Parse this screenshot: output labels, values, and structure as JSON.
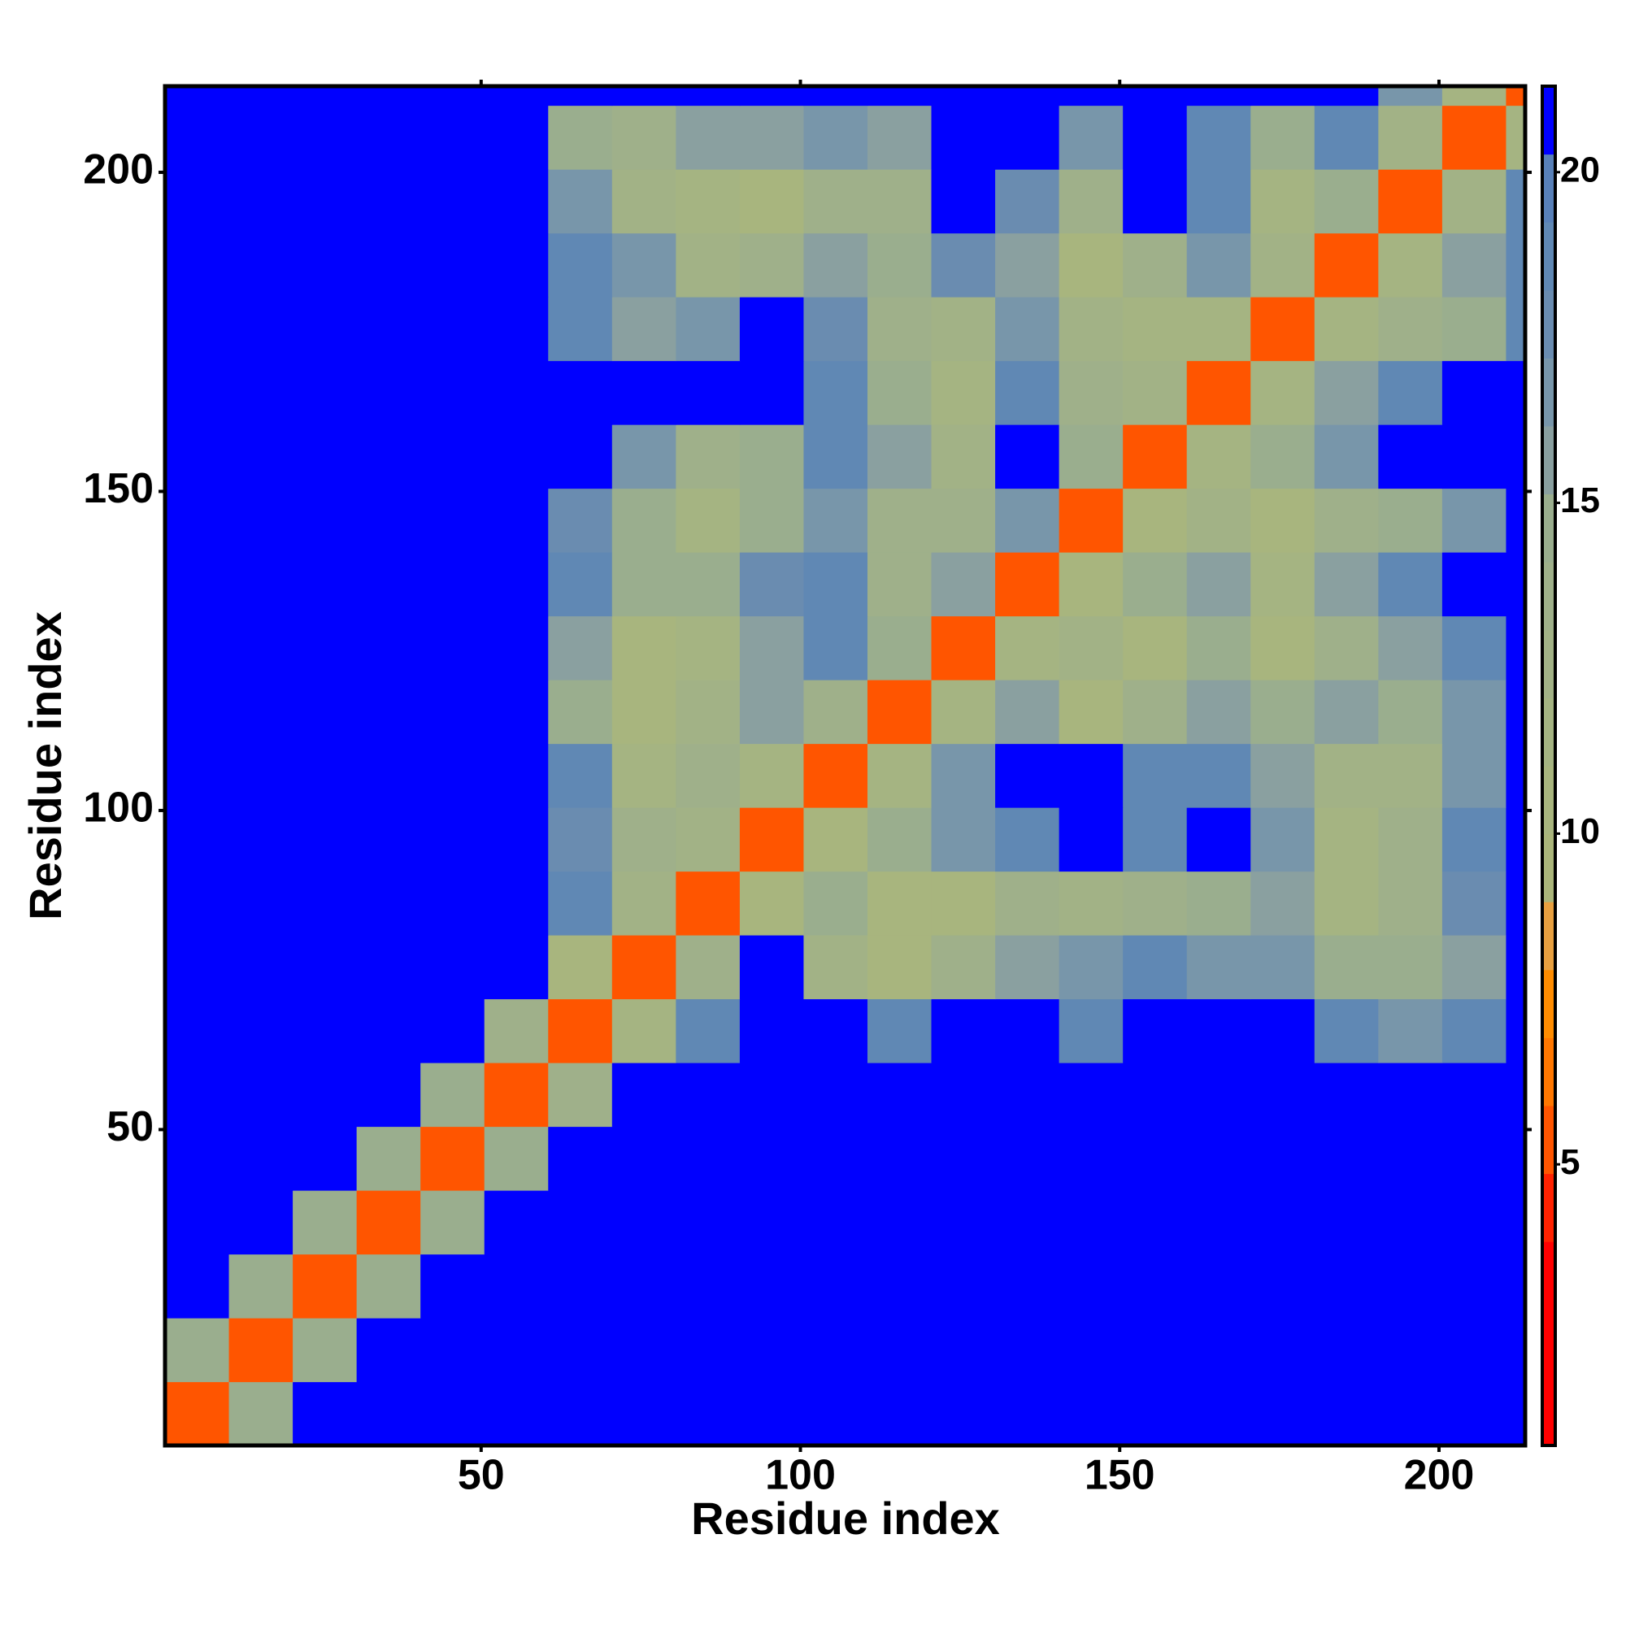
{
  "chart_data": {
    "type": "heatmap",
    "xlabel": "Residue index",
    "ylabel": "Residue index",
    "xlim": [
      0.5,
      213.5
    ],
    "ylim": [
      0.5,
      213.5
    ],
    "xticks": [
      50,
      100,
      150,
      200
    ],
    "yticks": [
      50,
      100,
      150,
      200
    ],
    "xbins": [
      0.5,
      10.5,
      20.5,
      30.5,
      40.5,
      50.5,
      60.5,
      70.5,
      80.5,
      90.5,
      100.5,
      110.5,
      120.5,
      130.5,
      140.5,
      150.5,
      160.5,
      170.5,
      180.5,
      190.5,
      200.5,
      210.5,
      213.5
    ],
    "ybins": [
      0.5,
      10.5,
      20.5,
      30.5,
      40.5,
      50.5,
      60.5,
      70.5,
      80.5,
      90.5,
      100.5,
      110.5,
      120.5,
      130.5,
      140.5,
      150.5,
      160.5,
      170.5,
      180.5,
      190.5,
      200.5,
      210.5,
      213.5
    ],
    "z": [
      [
        5,
        15,
        21,
        21,
        21,
        21,
        21,
        21,
        21,
        21,
        21,
        21,
        21,
        21,
        21,
        21,
        21,
        21,
        21,
        21,
        21,
        21
      ],
      [
        15,
        5,
        15,
        21,
        21,
        21,
        21,
        21,
        21,
        21,
        21,
        21,
        21,
        21,
        21,
        21,
        21,
        21,
        21,
        21,
        21,
        21
      ],
      [
        21,
        15,
        5,
        15,
        21,
        21,
        21,
        21,
        21,
        21,
        21,
        21,
        21,
        21,
        21,
        21,
        21,
        21,
        21,
        21,
        21,
        21
      ],
      [
        21,
        21,
        15,
        5,
        15,
        21,
        21,
        21,
        21,
        21,
        21,
        21,
        21,
        21,
        21,
        21,
        21,
        21,
        21,
        21,
        21,
        21
      ],
      [
        21,
        21,
        21,
        15,
        5,
        15,
        21,
        21,
        21,
        21,
        21,
        21,
        21,
        21,
        21,
        21,
        21,
        21,
        21,
        21,
        21,
        21
      ],
      [
        21,
        21,
        21,
        21,
        15,
        5,
        14,
        21,
        21,
        21,
        21,
        21,
        21,
        21,
        21,
        21,
        21,
        21,
        21,
        21,
        21,
        21
      ],
      [
        21,
        21,
        21,
        21,
        21,
        14,
        5,
        12,
        19,
        21,
        21,
        19,
        21,
        21,
        19,
        21,
        21,
        21,
        19,
        17,
        19,
        21
      ],
      [
        21,
        21,
        21,
        21,
        21,
        21,
        11,
        5,
        14,
        21,
        13,
        11,
        14,
        16,
        17,
        19,
        17,
        17,
        15,
        15,
        16,
        21
      ],
      [
        21,
        21,
        21,
        21,
        21,
        21,
        19,
        13,
        5,
        11,
        15,
        11,
        11,
        14,
        13,
        14,
        15,
        16,
        12,
        14,
        18,
        21
      ],
      [
        21,
        21,
        21,
        21,
        21,
        21,
        18,
        14,
        13,
        5,
        11,
        15,
        17,
        19,
        21,
        19,
        21,
        17,
        12,
        14,
        19,
        21
      ],
      [
        21,
        21,
        21,
        21,
        21,
        21,
        19,
        12,
        14,
        12,
        5,
        12,
        17,
        21,
        21,
        19,
        19,
        16,
        13,
        13,
        17,
        21
      ],
      [
        21,
        21,
        21,
        21,
        21,
        21,
        15,
        11,
        13,
        16,
        14,
        5,
        12,
        16,
        11,
        14,
        16,
        15,
        16,
        15,
        17,
        21
      ],
      [
        21,
        21,
        21,
        21,
        21,
        21,
        16,
        11,
        12,
        16,
        19,
        15,
        5,
        12,
        13,
        11,
        15,
        11,
        14,
        16,
        19,
        21
      ],
      [
        21,
        21,
        21,
        21,
        21,
        21,
        19,
        15,
        15,
        18,
        19,
        14,
        16,
        5,
        11,
        15,
        16,
        12,
        16,
        19,
        21,
        21
      ],
      [
        21,
        21,
        21,
        21,
        21,
        21,
        18,
        15,
        12,
        15,
        17,
        14,
        14,
        17,
        5,
        11,
        13,
        11,
        14,
        15,
        17,
        21
      ],
      [
        21,
        21,
        21,
        21,
        21,
        21,
        21,
        17,
        14,
        15,
        19,
        16,
        13,
        21,
        15,
        5,
        12,
        15,
        17,
        21,
        21,
        21
      ],
      [
        21,
        21,
        21,
        21,
        21,
        21,
        21,
        21,
        21,
        21,
        19,
        15,
        12,
        19,
        14,
        13,
        5,
        12,
        16,
        19,
        21,
        21
      ],
      [
        21,
        21,
        21,
        21,
        21,
        21,
        19,
        16,
        17,
        21,
        18,
        14,
        13,
        17,
        13,
        12,
        12,
        5,
        12,
        14,
        15,
        19
      ],
      [
        21,
        21,
        21,
        21,
        21,
        21,
        19,
        17,
        13,
        14,
        16,
        15,
        18,
        16,
        11,
        14,
        17,
        13,
        5,
        12,
        16,
        19
      ],
      [
        21,
        21,
        21,
        21,
        21,
        21,
        17,
        13,
        12,
        11,
        14,
        14,
        21,
        18,
        14,
        21,
        19,
        12,
        15,
        5,
        13,
        19
      ],
      [
        21,
        21,
        21,
        21,
        21,
        21,
        15,
        14,
        16,
        16,
        17,
        16,
        21,
        21,
        17,
        21,
        19,
        15,
        19,
        13,
        5,
        12
      ],
      [
        21,
        21,
        21,
        21,
        21,
        21,
        21,
        21,
        21,
        21,
        21,
        21,
        21,
        21,
        21,
        21,
        21,
        21,
        21,
        17,
        12,
        5
      ]
    ],
    "zlim": [
      0.75,
      21.3
    ],
    "cticks": [
      5,
      10,
      15,
      20
    ],
    "colors": [
      "#ff0000",
      "#ff0000",
      "#ff0000",
      "#ff2200",
      "#ff5500",
      "#ff7700",
      "#ff8c00",
      "#e8a040",
      "#aab57a",
      "#a8b57e",
      "#a5b482",
      "#a2b286",
      "#9fb08a",
      "#9aae8e",
      "#8aa0a0",
      "#7896aa",
      "#6a8cb0",
      "#6088b4",
      "#5880b8",
      "#0000ff"
    ]
  }
}
